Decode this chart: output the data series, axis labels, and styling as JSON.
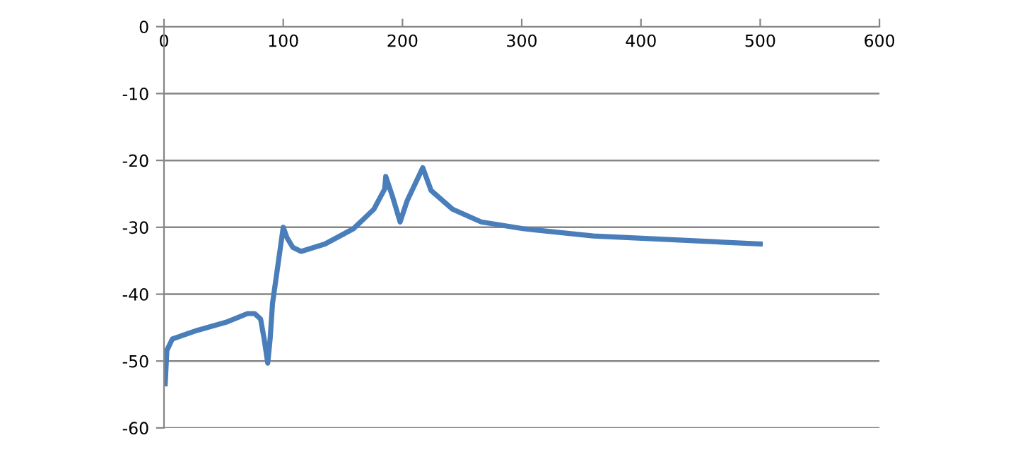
{
  "chart_data": {
    "type": "line",
    "series": [
      {
        "color": "#4a7ebb",
        "x": [
          1,
          2.4,
          7,
          28,
          52,
          70,
          76,
          81,
          84,
          87,
          89,
          91,
          100,
          103,
          108,
          115,
          135,
          159,
          176,
          185,
          186,
          192,
          198,
          204,
          217,
          224,
          242,
          266,
          301,
          360,
          432,
          500
        ],
        "values": [
          -53.4,
          -48.4,
          -46.7,
          -45.4,
          -44.2,
          -42.9,
          -42.9,
          -43.7,
          -46.7,
          -50.3,
          -46.7,
          -41.4,
          -30,
          -31.5,
          -33,
          -33.6,
          -32.5,
          -30.2,
          -27.3,
          -24.3,
          -22.4,
          -25.6,
          -29.2,
          -26,
          -21.1,
          -24.5,
          -27.3,
          -29.2,
          -30.2,
          -31.3,
          -31.9,
          -32.5
        ]
      }
    ],
    "xlim": [
      0,
      600
    ],
    "xticks": [
      0,
      100,
      200,
      300,
      400,
      500,
      600
    ],
    "ylim": [
      -60,
      0
    ],
    "yticks": [
      -60,
      -50,
      -40,
      -30,
      -20,
      -10,
      0
    ],
    "grid": "y",
    "marker": "none",
    "line_style": "solid",
    "legend": false
  }
}
